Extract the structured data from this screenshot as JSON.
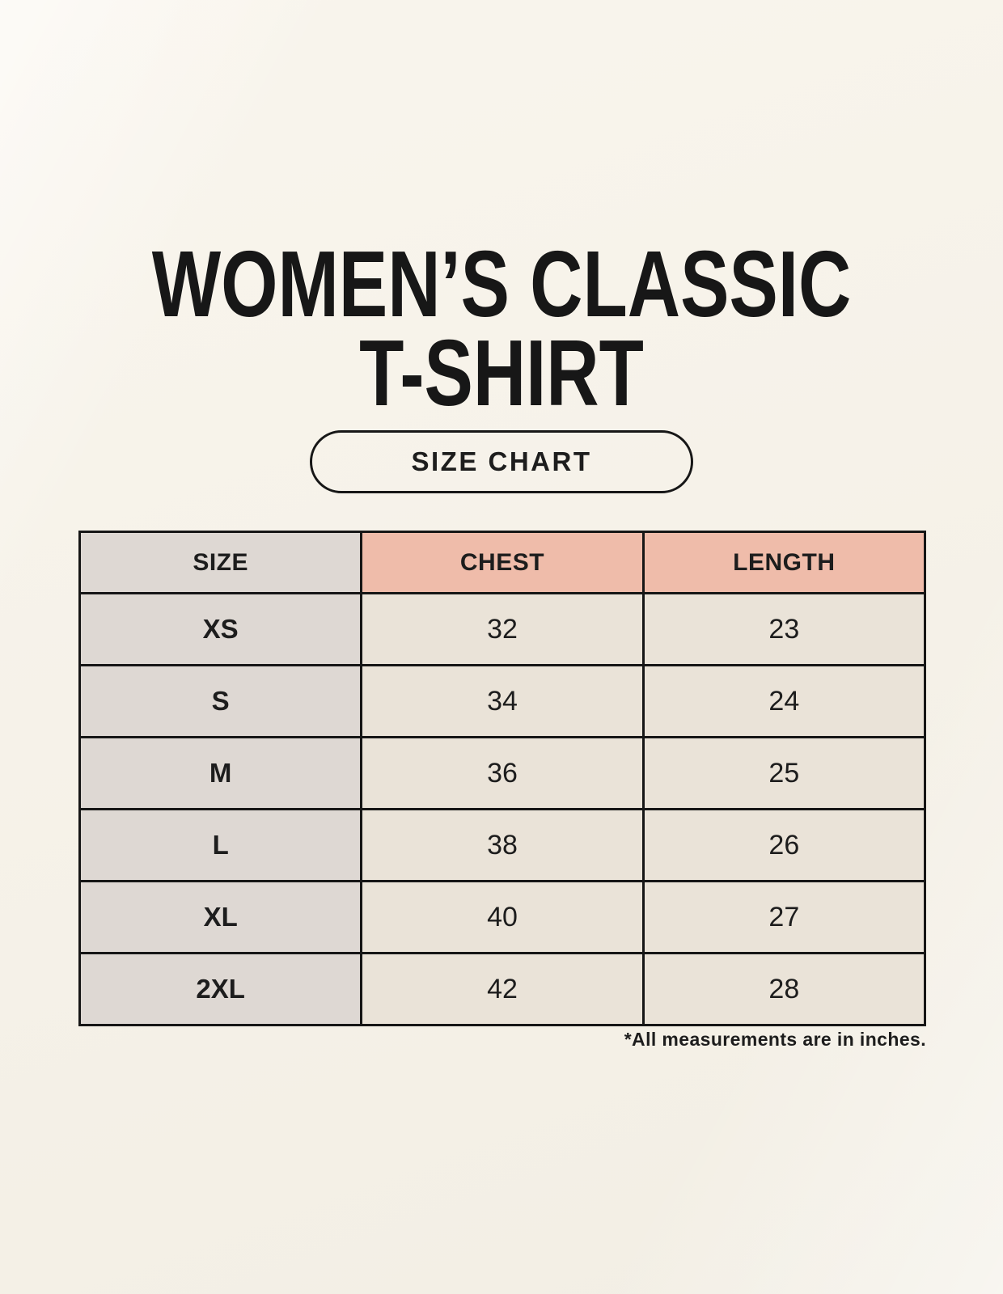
{
  "page": {
    "title_line1": "WOMEN’S CLASSIC",
    "title_line2": "T-SHIRT",
    "badge_label": "SIZE CHART",
    "footnote": "*All measurements are in inches."
  },
  "colors": {
    "background": "#f6f2e9",
    "size_column_bg": "#ded8d3",
    "measure_header_bg": "#efbcaa",
    "data_cell_bg": "#eae3d8",
    "border": "#161616",
    "text": "#1d1d1d"
  },
  "chart_data": {
    "type": "table",
    "title": "WOMEN’S CLASSIC T-SHIRT SIZE CHART",
    "columns": [
      "SIZE",
      "CHEST",
      "LENGTH"
    ],
    "units": "inches",
    "rows": [
      {
        "size": "XS",
        "chest": 32,
        "length": 23
      },
      {
        "size": "S",
        "chest": 34,
        "length": 24
      },
      {
        "size": "M",
        "chest": 36,
        "length": 25
      },
      {
        "size": "L",
        "chest": 38,
        "length": 26
      },
      {
        "size": "XL",
        "chest": 40,
        "length": 27
      },
      {
        "size": "2XL",
        "chest": 42,
        "length": 28
      }
    ],
    "note": "*All measurements are in inches."
  }
}
